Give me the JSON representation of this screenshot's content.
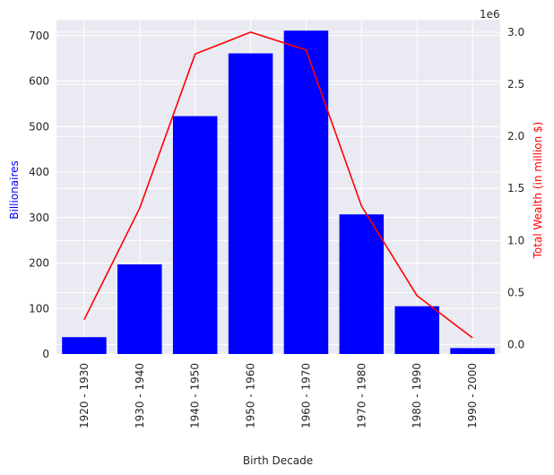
{
  "chart_data": {
    "type": "bar",
    "xlabel": "Birth Decade",
    "ylabel": "Billionaires",
    "ylabel_color": "#0000ff",
    "y2label": "Total Wealth (in million $)",
    "y2label_color": "#ff0000",
    "y2_offset_text": "1e6",
    "categories": [
      "1920 - 1930",
      "1930 - 1940",
      "1940 - 1950",
      "1950 - 1960",
      "1960 - 1970",
      "1970 - 1980",
      "1980 - 1990",
      "1990 - 2000"
    ],
    "series": [
      {
        "axis": "left",
        "kind": "bar",
        "color": "#0000ff",
        "values": [
          37,
          197,
          523,
          661,
          711,
          307,
          105,
          13
        ]
      },
      {
        "axis": "right",
        "kind": "line",
        "color": "#ff0000",
        "values": [
          240000,
          1310000,
          2790000,
          3000000,
          2830000,
          1330000,
          470000,
          65000
        ]
      }
    ],
    "ylim": [
      0,
      735
    ],
    "y2lim": [
      -90000,
      3120000
    ],
    "yticks": [
      0,
      100,
      200,
      300,
      400,
      500,
      600,
      700
    ],
    "y2ticks": [
      0,
      500000,
      1000000,
      1500000,
      2000000,
      2500000,
      3000000
    ],
    "y2tick_labels": [
      "0.0",
      "0.5",
      "1.0",
      "1.5",
      "2.0",
      "2.5",
      "3.0"
    ],
    "grid": true,
    "background": "#eaeaf2"
  }
}
